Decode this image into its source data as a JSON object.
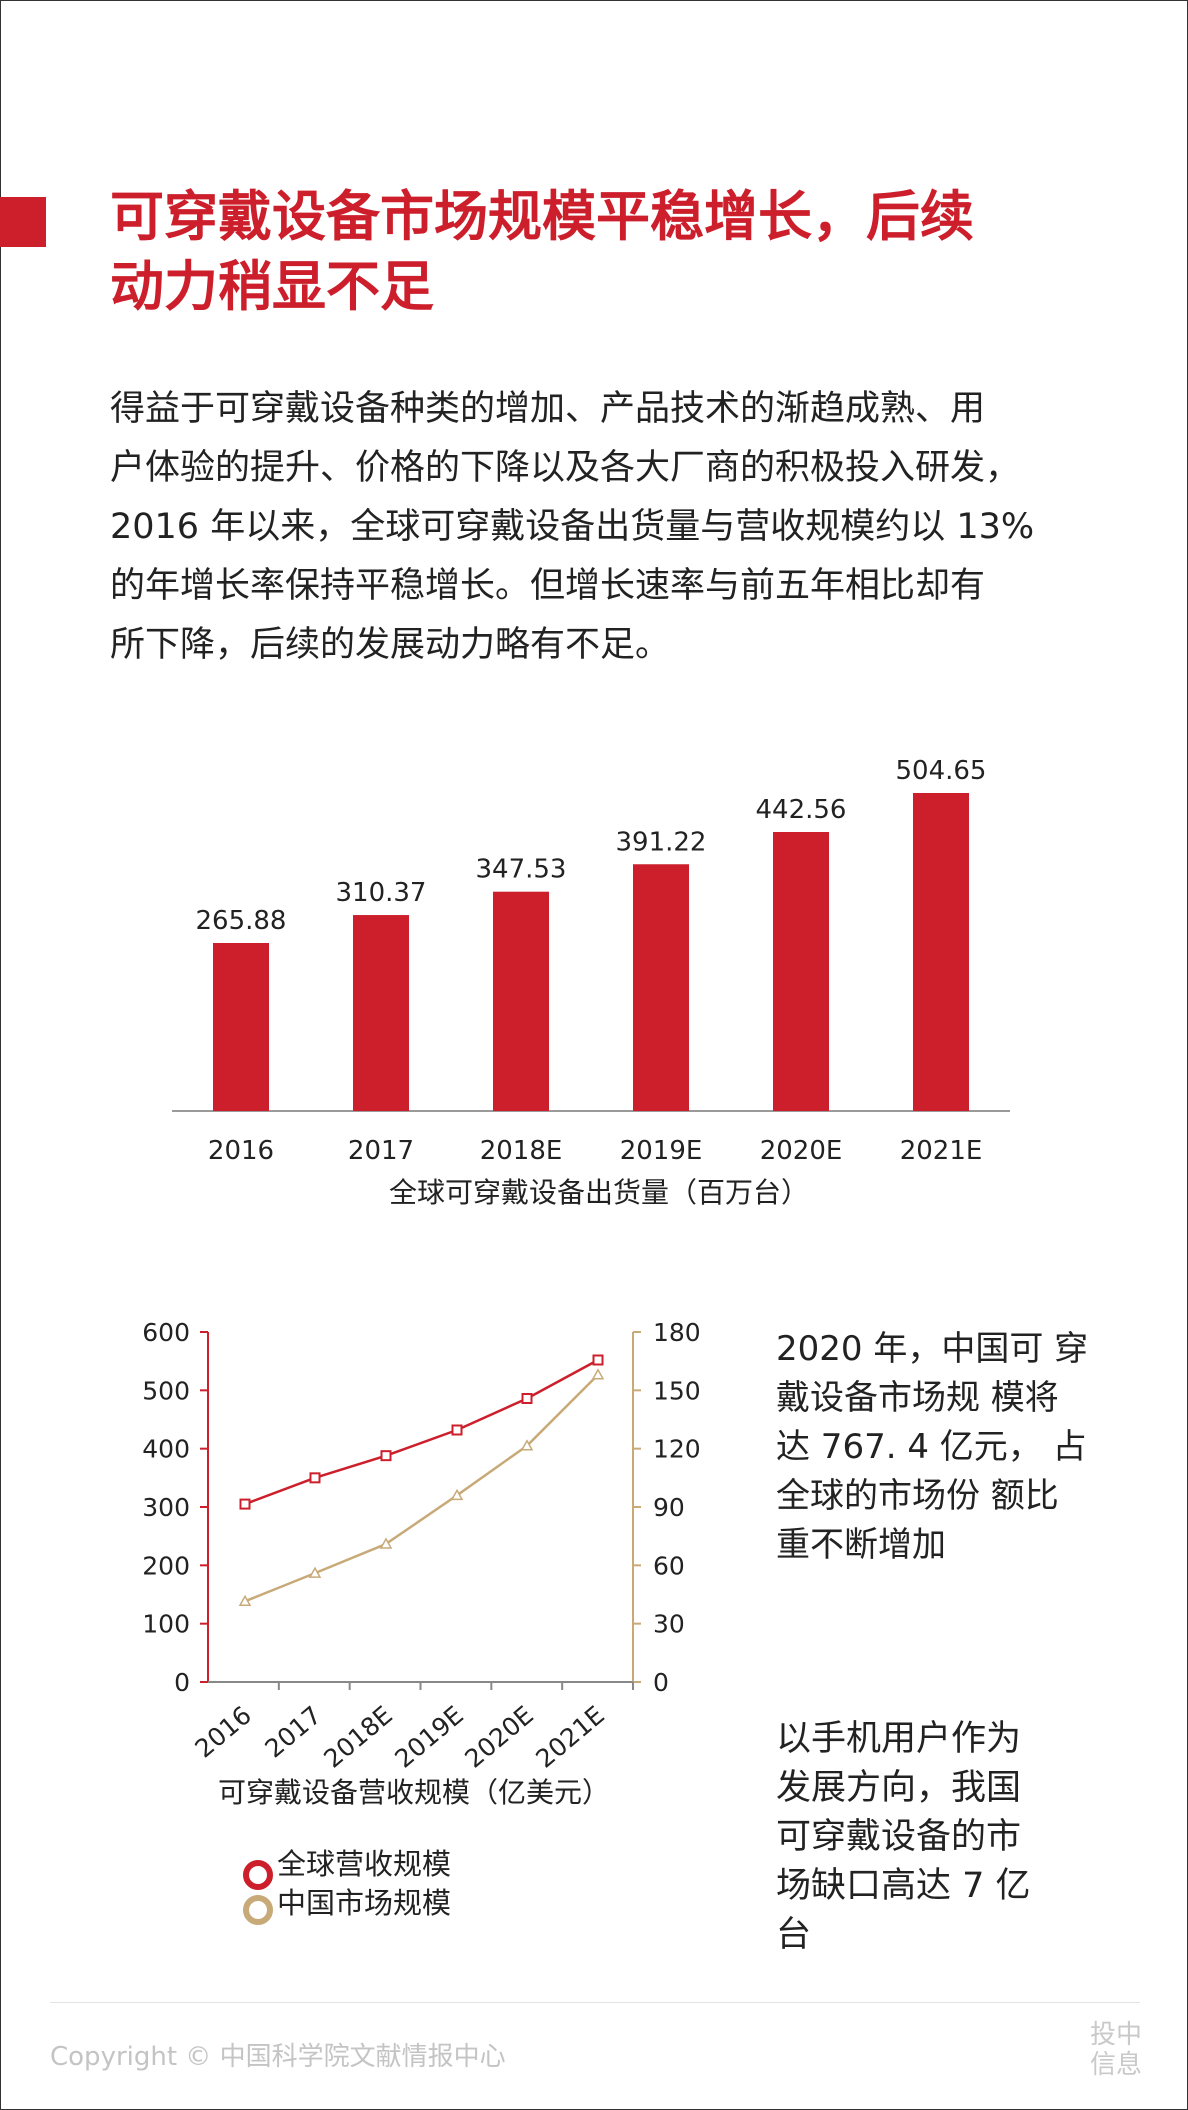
{
  "title_lines": [
    "可穿戴设备市场规模平稳增长，后续",
    "动力稍显不足"
  ],
  "intro_lines": [
    "得益于可穿戴设备种类的增加、产品技术的渐趋成熟、用",
    "户体验的提升、价格的下降以及各大厂商的积极投入研发，",
    "2016 年以来，全球可穿戴设备出货量与营收规模约以 13%",
    "的年增长率保持平稳增长。但增长速率与前五年相比却有",
    "所下降，后续的发展动力略有不足。"
  ],
  "side_text_1": [
    "2020 年，中国可 穿",
    "戴设备市场规 模将",
    "达 767. 4 亿元，  占",
    "全球的市场份 额比",
    "重不断增加"
  ],
  "side_text_2": [
    "以手机用户作为",
    "发展方向，我国",
    "可穿戴设备的市",
    "场缺口高达 7 亿",
    "台"
  ],
  "footer": {
    "copyright": "Copyright © 中国科学院文献情报中心",
    "brand_lines": [
      "投中",
      "信息"
    ]
  },
  "colors": {
    "accent": "#cc1f2b",
    "china_line": "#c8aa78",
    "text": "#222222"
  },
  "chart_data": [
    {
      "type": "bar",
      "title": "",
      "xlabel": "全球可穿戴设备出货量（百万台）",
      "ylabel": "",
      "categories": [
        "2016",
        "2017",
        "2018E",
        "2019E",
        "2020E",
        "2021E"
      ],
      "values": [
        265.88,
        310.37,
        347.53,
        391.22,
        442.56,
        504.65
      ],
      "value_labels": [
        "265.88",
        "310.37",
        "347.53",
        "391.22",
        "442.56",
        "504.65"
      ],
      "ylim": [
        0,
        520
      ],
      "grid": false,
      "legend": "none"
    },
    {
      "type": "line",
      "title": "",
      "xlabel": "可穿戴设备营收规模（亿美元）",
      "categories": [
        "2016",
        "2017",
        "2018E",
        "2019E",
        "2020E",
        "2021E"
      ],
      "y_left": {
        "range": [
          0,
          600
        ],
        "ticks": [
          "0",
          "100",
          "200",
          "300",
          "400",
          "500",
          "600"
        ]
      },
      "y_right": {
        "range": [
          0,
          180
        ],
        "ticks": [
          "0",
          "30",
          "60",
          "90",
          "120",
          "150",
          "180"
        ]
      },
      "series": [
        {
          "name": "全球营收规模",
          "axis": "left",
          "values": [
            305,
            350,
            388,
            432,
            486,
            552
          ]
        },
        {
          "name": "中国市场规模",
          "axis": "right",
          "values": [
            41.5,
            56,
            71,
            96,
            121.5,
            158
          ]
        }
      ],
      "grid": false,
      "legend": "bottom-left"
    }
  ]
}
